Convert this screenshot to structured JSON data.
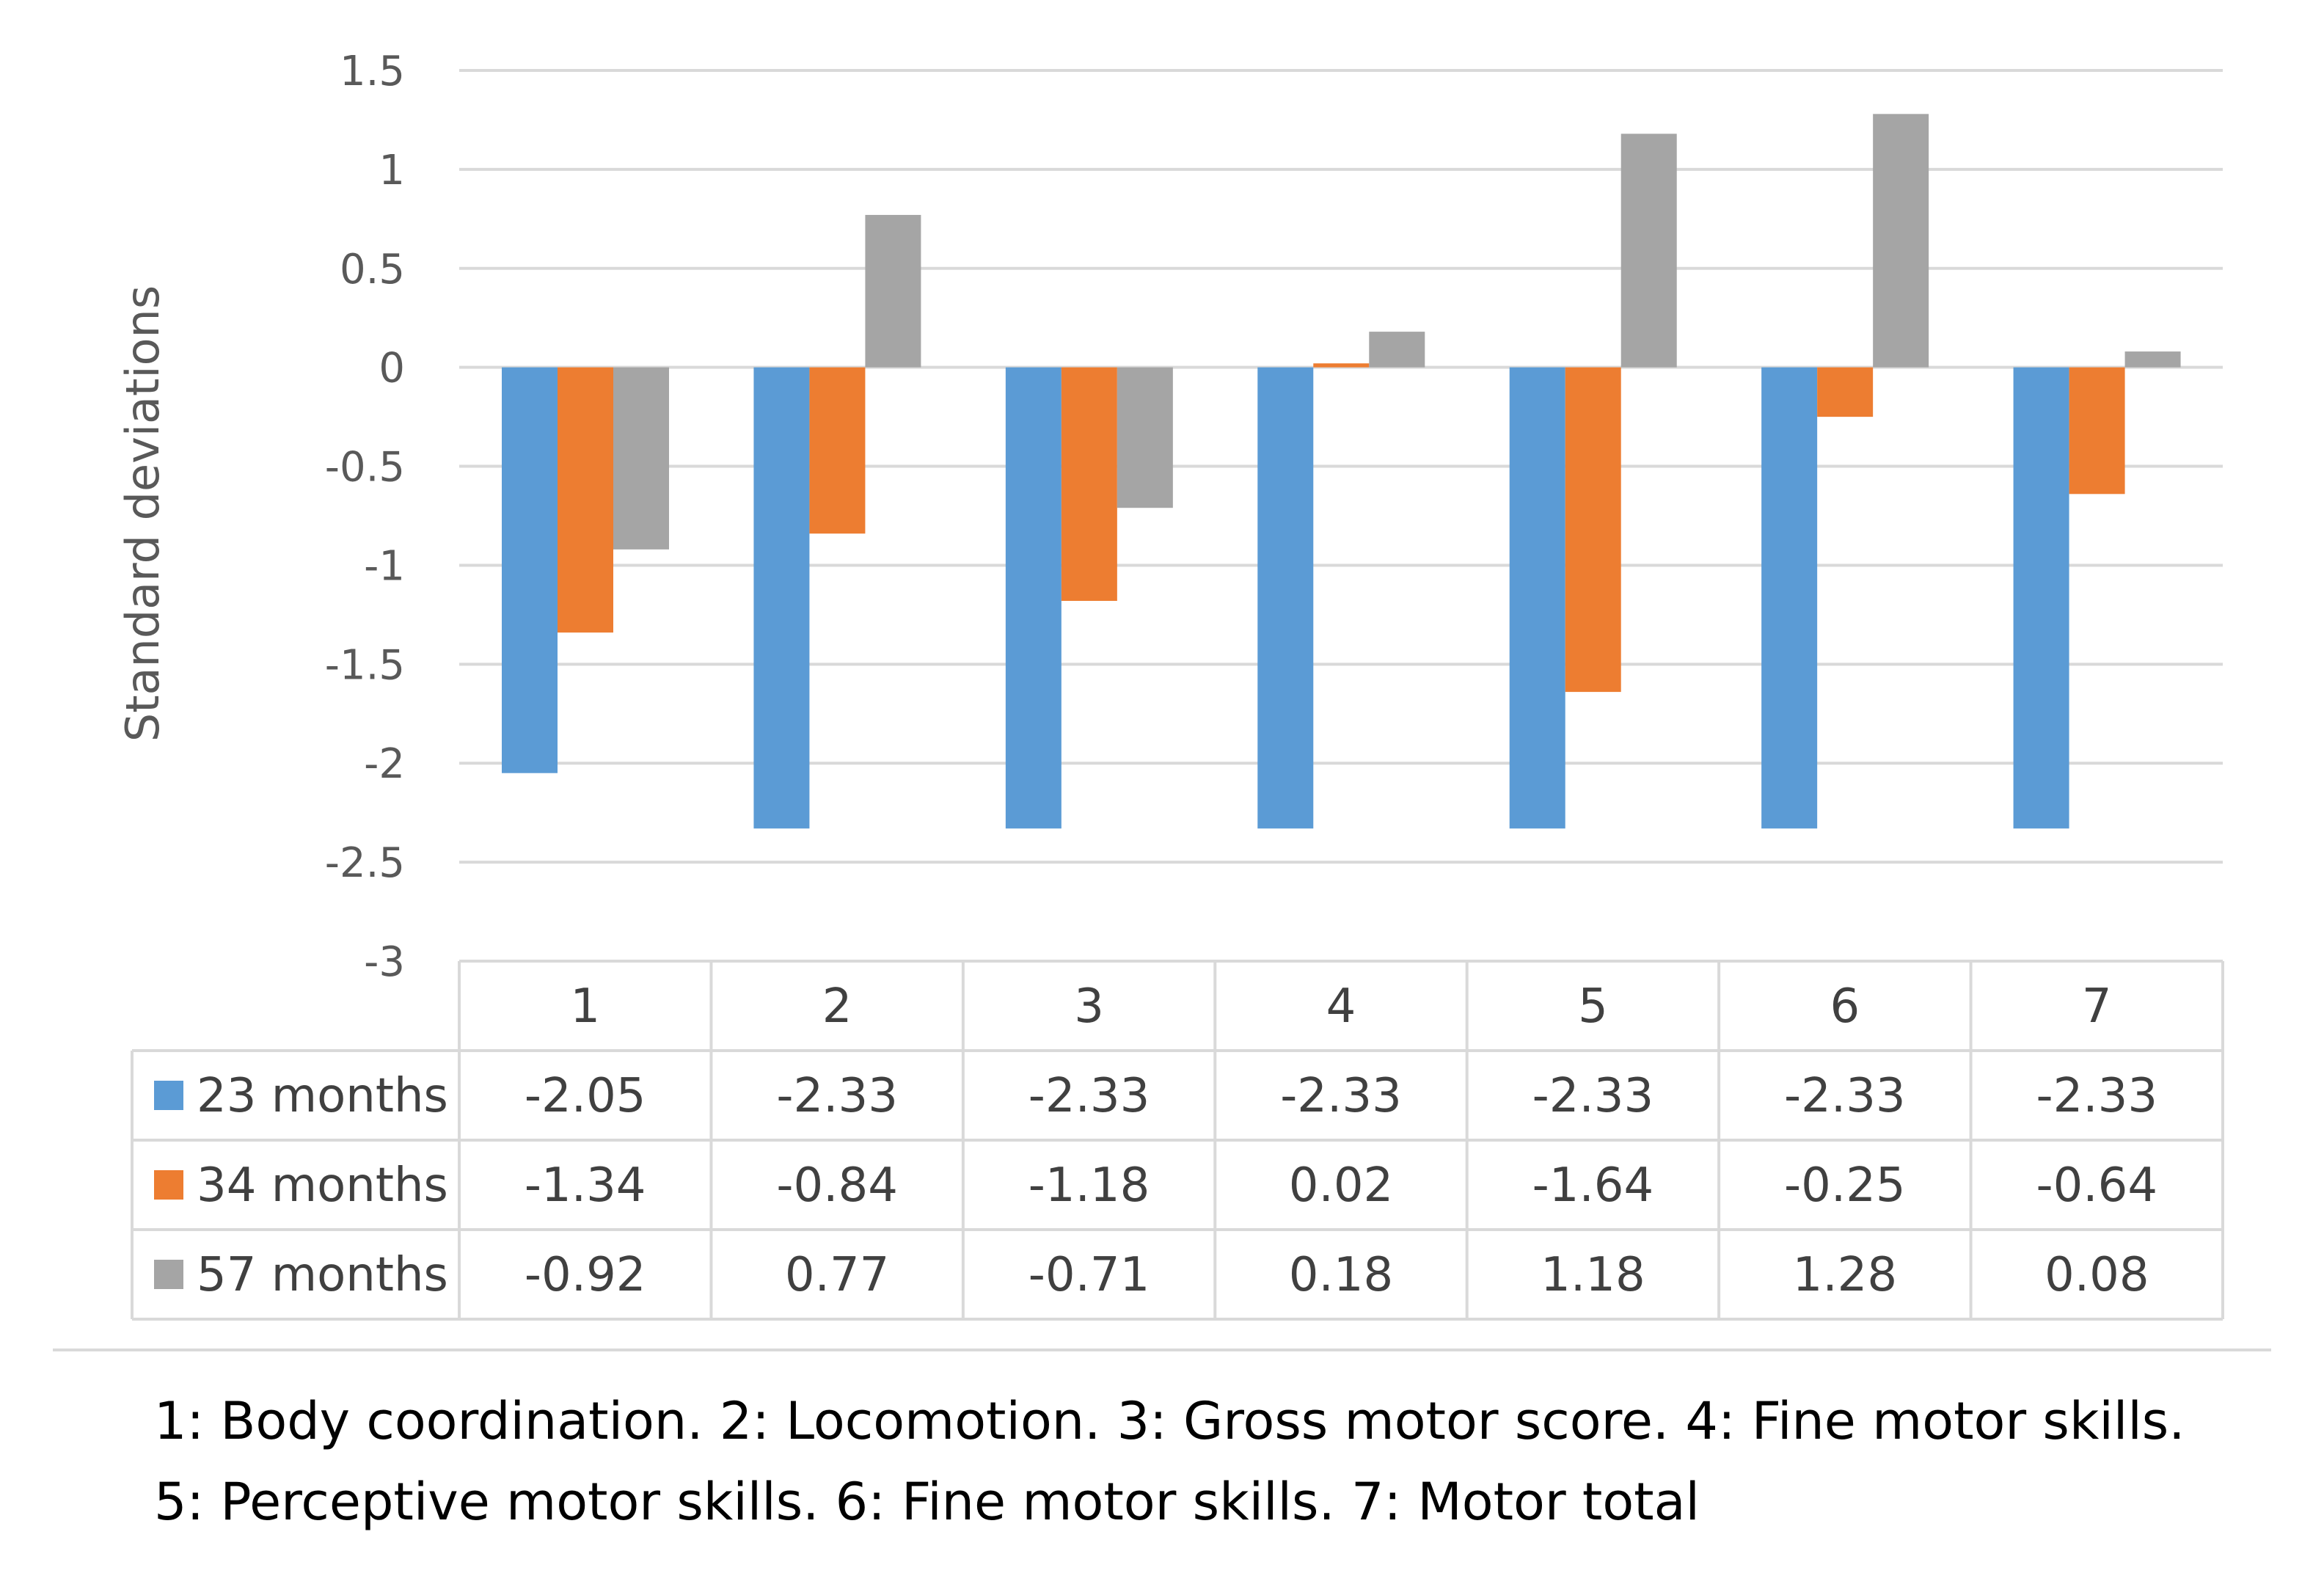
{
  "chart_data": {
    "type": "bar",
    "title": "",
    "xlabel": "",
    "ylabel": "Standard deviations",
    "ylim": [
      -3,
      1.5
    ],
    "yticks": [
      1.5,
      1,
      0.5,
      0,
      -0.5,
      -1,
      -1.5,
      -2,
      -2.5,
      -3
    ],
    "ytick_labels": [
      "1.5",
      "1",
      "0.5",
      "0",
      "-0.5",
      "-1",
      "-1.5",
      "-2",
      "-2.5",
      "-3"
    ],
    "grid": true,
    "legend": "data-table",
    "categories": [
      "1",
      "2",
      "3",
      "4",
      "5",
      "6",
      "7"
    ],
    "series": [
      {
        "name": "23 months",
        "color": "#5b9bd5",
        "values": [
          -2.05,
          -2.33,
          -2.33,
          -2.33,
          -2.33,
          -2.33,
          -2.33
        ],
        "labels": [
          "-2.05",
          "-2.33",
          "-2.33",
          "-2.33",
          "-2.33",
          "-2.33",
          "-2.33"
        ]
      },
      {
        "name": "34 months",
        "color": "#ed7d31",
        "values": [
          -1.34,
          -0.84,
          -1.18,
          0.02,
          -1.64,
          -0.25,
          -0.64
        ],
        "labels": [
          "-1.34",
          "-0.84",
          "-1.18",
          "0.02",
          "-1.64",
          "-0.25",
          "-0.64"
        ]
      },
      {
        "name": "57 months",
        "color": "#a5a5a5",
        "values": [
          -0.92,
          0.77,
          -0.71,
          0.18,
          1.18,
          1.28,
          0.08
        ],
        "labels": [
          "-0.92",
          "0.77",
          "-0.71",
          "0.18",
          "1.18",
          "1.28",
          "0.08"
        ]
      }
    ]
  },
  "caption": {
    "line1": "1: Body coordination. 2: Locomotion. 3: Gross motor score. 4: Fine motor skills.",
    "line2": "5: Perceptive motor skills. 6: Fine motor skills. 7: Motor total"
  }
}
